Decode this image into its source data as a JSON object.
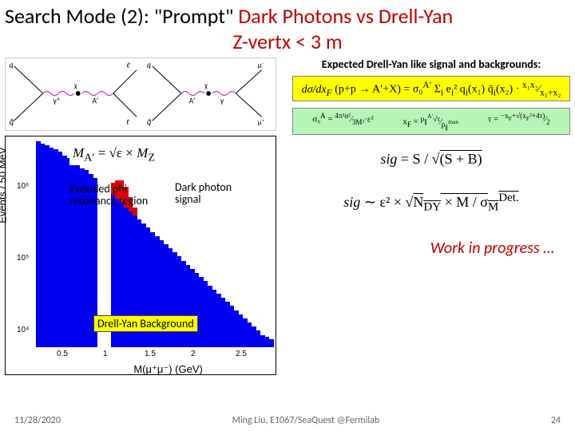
{
  "title": {
    "line1_pre": "Search Mode (2): \"Prompt\" ",
    "line1_red": "Dark Photons vs Drell-Yan",
    "line2": "Z-vertx < 3 m",
    "color_red": "#c00000"
  },
  "right": {
    "header": "Expected Drell-Yan like signal and backgrounds:",
    "formula1": "dσ/dx_F (p + p → A′ + X) = σ₀^{A′} Σ_i e_i² q_i(x₁) q̄_i(x₂) · x₁x₂/(x₁+x₂)",
    "formula2a": "σ₀^A = 4π²α²/(3M²) · ε²",
    "formula2b": "x_F = x₁ − x₂ = p_∥^{A′}√τ / p_∥^{max}",
    "formula2c": "τ = −x_F + √(x_F² + 4τ) / 2",
    "formula3": "sig = S / √(S + B)",
    "formula4": "sig ∼ ε² × √(N_DY × M / σ_M^{Det.})",
    "wip": "Work in progress …"
  },
  "chart": {
    "ylabel": "Events / 50 MeV",
    "xlabel": "M(μ⁺μ⁻) (GeV)",
    "mass_formula": "M_{A′} = √ε × M_Z",
    "annot_excluded_l1": "Excluded phi",
    "annot_excluded_l2": "resonance region",
    "annot_signal_l1": "Dark photon",
    "annot_signal_l2": "signal",
    "annot_bkg": "Drell-Yan Background",
    "xticks": [
      "0.5",
      "1",
      "1.5",
      "2",
      "2.5"
    ],
    "yticks": [
      "10⁴",
      "10⁵",
      "10⁶"
    ],
    "xlim": [
      0.2,
      2.9
    ],
    "ylog": true,
    "exclude_band": {
      "xstart": 0.9,
      "xend": 1.1,
      "color": "#ffffff"
    },
    "colors": {
      "dy_background": "#0000f0",
      "signal": "#e00000",
      "frame": "#000000",
      "highlight": "#ffff00"
    },
    "bars_blue": [
      {
        "x": 0,
        "h": 1.0
      },
      {
        "x": 1,
        "h": 0.99
      },
      {
        "x": 2,
        "h": 0.98
      },
      {
        "x": 3,
        "h": 0.97
      },
      {
        "x": 4,
        "h": 0.96
      },
      {
        "x": 5,
        "h": 0.95
      },
      {
        "x": 6,
        "h": 0.93
      },
      {
        "x": 7,
        "h": 0.92
      },
      {
        "x": 8,
        "h": 0.9
      },
      {
        "x": 9,
        "h": 0.89
      },
      {
        "x": 10,
        "h": 0.87
      },
      {
        "x": 11,
        "h": 0.86
      },
      {
        "x": 12,
        "h": 0.84
      },
      {
        "x": 13,
        "h": 0.82
      },
      {
        "x": 14,
        "h": 0.0
      },
      {
        "x": 15,
        "h": 0.0
      },
      {
        "x": 16,
        "h": 0.0
      },
      {
        "x": 17,
        "h": 0.74
      },
      {
        "x": 18,
        "h": 0.72
      },
      {
        "x": 19,
        "h": 0.7
      },
      {
        "x": 20,
        "h": 0.68
      },
      {
        "x": 21,
        "h": 0.66
      },
      {
        "x": 22,
        "h": 0.64
      },
      {
        "x": 23,
        "h": 0.62
      },
      {
        "x": 24,
        "h": 0.6
      },
      {
        "x": 25,
        "h": 0.58
      },
      {
        "x": 26,
        "h": 0.56
      },
      {
        "x": 27,
        "h": 0.54
      },
      {
        "x": 28,
        "h": 0.52
      },
      {
        "x": 29,
        "h": 0.5
      },
      {
        "x": 30,
        "h": 0.48
      },
      {
        "x": 31,
        "h": 0.46
      },
      {
        "x": 32,
        "h": 0.44
      },
      {
        "x": 33,
        "h": 0.42
      },
      {
        "x": 34,
        "h": 0.4
      },
      {
        "x": 35,
        "h": 0.38
      },
      {
        "x": 36,
        "h": 0.36
      },
      {
        "x": 37,
        "h": 0.34
      },
      {
        "x": 38,
        "h": 0.32
      },
      {
        "x": 39,
        "h": 0.3
      },
      {
        "x": 40,
        "h": 0.28
      },
      {
        "x": 41,
        "h": 0.26
      },
      {
        "x": 42,
        "h": 0.24
      },
      {
        "x": 43,
        "h": 0.22
      },
      {
        "x": 44,
        "h": 0.2
      },
      {
        "x": 45,
        "h": 0.18
      },
      {
        "x": 46,
        "h": 0.16
      },
      {
        "x": 47,
        "h": 0.14
      },
      {
        "x": 48,
        "h": 0.12
      },
      {
        "x": 49,
        "h": 0.1
      },
      {
        "x": 50,
        "h": 0.08
      },
      {
        "x": 51,
        "h": 0.06
      },
      {
        "x": 52,
        "h": 0.05
      },
      {
        "x": 53,
        "h": 0.04
      }
    ],
    "bars_red": [
      {
        "x": 17,
        "h": 0.06
      },
      {
        "x": 18,
        "h": 0.09
      },
      {
        "x": 19,
        "h": 0.11
      },
      {
        "x": 20,
        "h": 0.1
      },
      {
        "x": 21,
        "h": 0.07
      },
      {
        "x": 22,
        "h": 0.04
      }
    ]
  },
  "feynman": {
    "labels": [
      "q",
      "q̄",
      "γ*",
      "A′",
      "μ⁺",
      "μ⁻",
      "γ",
      "χ"
    ]
  },
  "footer": {
    "date": "11/28/2020",
    "center": "Ming Liu, E1067/SeaQuest @Fermilab",
    "page": "24"
  }
}
